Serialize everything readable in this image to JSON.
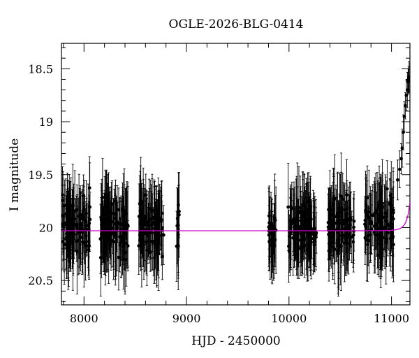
{
  "chart_data": {
    "type": "scatter",
    "title": "OGLE-2026-BLG-0414",
    "xlabel": "HJD - 2450000",
    "ylabel": "I magnitude",
    "xlim": [
      7780,
      11180
    ],
    "ylim": [
      20.73,
      18.26
    ],
    "y_inverted": true,
    "xticks": [
      8000,
      9000,
      10000,
      11000
    ],
    "xtick_labels": [
      "8000",
      "9000",
      "10000",
      "11000"
    ],
    "yticks": [
      18.5,
      19,
      19.5,
      20,
      20.5
    ],
    "ytick_labels": [
      "18.5",
      "19",
      "19.5",
      "20",
      "20.5"
    ],
    "grid": false,
    "legend": "none",
    "colors": {
      "points": "#000000",
      "model": "#cc00cc"
    },
    "observing_seasons": [
      {
        "x_start": 7790,
        "x_end": 8060,
        "mean_mag": 20.0
      },
      {
        "x_start": 8160,
        "x_end": 8430,
        "mean_mag": 20.0
      },
      {
        "x_start": 8530,
        "x_end": 8780,
        "mean_mag": 20.0
      },
      {
        "x_start": 8900,
        "x_end": 8930,
        "mean_mag": 20.0
      },
      {
        "x_start": 9800,
        "x_end": 9880,
        "mean_mag": 20.05
      },
      {
        "x_start": 9990,
        "x_end": 10270,
        "mean_mag": 20.0
      },
      {
        "x_start": 10380,
        "x_end": 10640,
        "mean_mag": 20.0
      },
      {
        "x_start": 10740,
        "x_end": 11020,
        "mean_mag": 19.95
      }
    ],
    "typical_error": 0.3,
    "series": [
      {
        "data": [
          [
            11060,
            19.55
          ],
          [
            11080,
            19.45
          ],
          [
            11095,
            19.35
          ],
          [
            11105,
            19.25
          ],
          [
            11115,
            19.1
          ],
          [
            11125,
            18.95
          ],
          [
            11135,
            18.85
          ],
          [
            11145,
            18.75
          ],
          [
            11155,
            18.7
          ],
          [
            11162,
            18.62
          ],
          [
            11168,
            18.6
          ],
          [
            11172,
            18.58
          ]
        ]
      }
    ],
    "model": {
      "baseline_mag": 20.03,
      "t0": 11240,
      "u0": 0.1,
      "tE": 55,
      "fs": 1.0
    }
  }
}
